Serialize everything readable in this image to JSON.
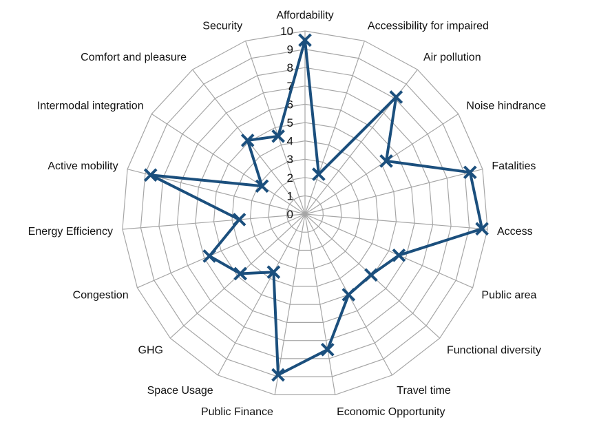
{
  "chart_data": {
    "type": "radar",
    "ylim": [
      0,
      10
    ],
    "ticks": [
      "0",
      "1",
      "2",
      "3",
      "4",
      "5",
      "6",
      "7",
      "8",
      "9",
      "10"
    ],
    "grid": true,
    "categories": [
      "Affordability",
      "Accessibility for impaired",
      "Air pollution",
      "Noise hindrance",
      "Fatalities",
      "Access",
      "Public area",
      "Functional diversity",
      "Travel time",
      "Economic Opportunity",
      "Public Finance",
      "Space Usage",
      "GHG",
      "Congestion",
      "Energy Efficiency",
      "Active mobility",
      "Intermodal integration",
      "Comfort and pleasure",
      "Security"
    ],
    "series": [
      {
        "values": [
          9.5,
          2.3,
          8.1,
          5.3,
          9.3,
          9.7,
          5.6,
          4.9,
          5.0,
          7.5,
          8.9,
          3.6,
          4.8,
          5.7,
          3.6,
          8.7,
          2.8,
          5.1,
          4.5
        ]
      }
    ],
    "colors": {
      "series": "#1b4f7d",
      "grid": "#a6a6a6"
    }
  }
}
